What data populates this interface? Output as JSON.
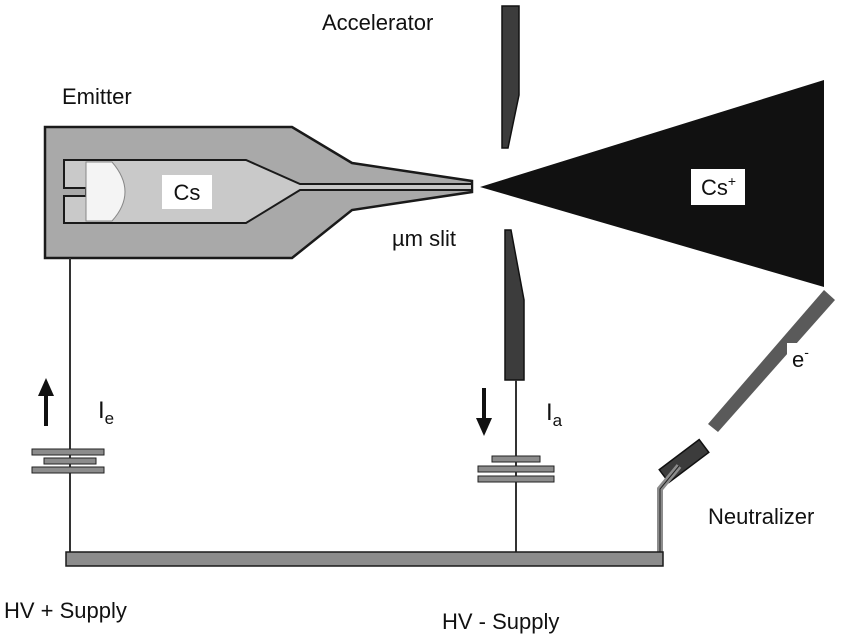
{
  "labels": {
    "emitter": "Emitter",
    "accelerator": "Accelerator",
    "cs": "Cs",
    "cs_ion": "Cs",
    "cs_ion_sup": "+",
    "slit": "µm slit",
    "electron": "e",
    "electron_sup": "-",
    "ie": "I",
    "ie_sub": "e",
    "ia": "I",
    "ia_sub": "a",
    "neutralizer": "Neutralizer",
    "hv_plus": "HV + Supply",
    "hv_minus": "HV - Supply"
  },
  "colors": {
    "emitter_body": "#a9a9a9",
    "inner_chamber": "#c4c4c4",
    "dark_metal": "#3c3c3c",
    "ion_beam": "#111111",
    "electron_beam": "#5a5a5a",
    "wire": "#8c8c8c",
    "outline": "#1a1a1a"
  }
}
